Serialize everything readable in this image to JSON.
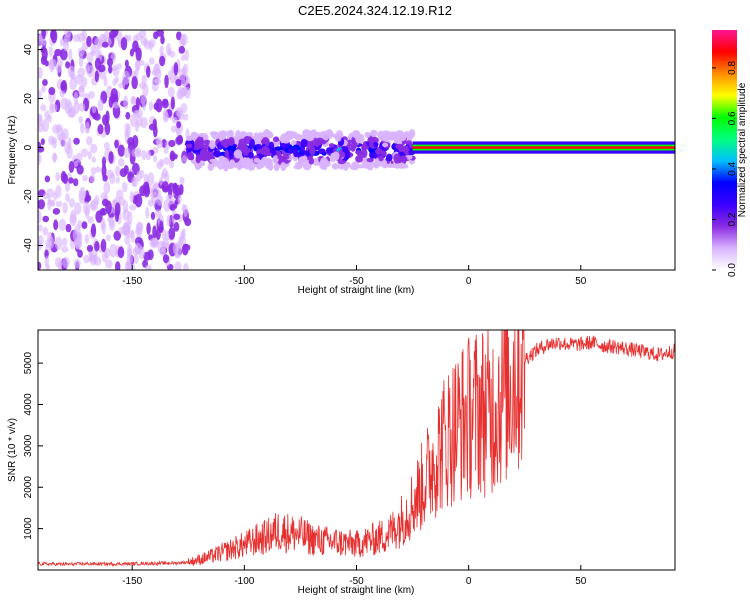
{
  "title": "C2E5.2024.324.12.19.R12",
  "colors": {
    "snr_line": "#e63030",
    "colormap": [
      "#ffffff",
      "#d9b3ff",
      "#8a2be2",
      "#3b00ff",
      "#0000ff",
      "#00bfff",
      "#00ff7f",
      "#00ff00",
      "#ffff00",
      "#ff8c00",
      "#ff0000",
      "#ff1493"
    ]
  },
  "chart_data": [
    {
      "type": "heatmap",
      "name": "spectrogram",
      "xlabel": "Height of straight line (km)",
      "ylabel": "Frequency (Hz)",
      "xlim": [
        -192,
        92
      ],
      "ylim": [
        -50,
        48
      ],
      "xticks": [
        -150,
        -100,
        -50,
        0,
        50
      ],
      "yticks": [
        -40,
        -20,
        0,
        20,
        40
      ],
      "colorbar": {
        "label": "Normalized spectral amplitude",
        "range": [
          0,
          0.95
        ],
        "ticks": [
          "0.0",
          "0.2",
          "0.4",
          "0.6",
          "0.8"
        ],
        "tick_values": [
          0,
          0.2,
          0.4,
          0.6,
          0.8
        ]
      },
      "regions": [
        {
          "name": "noise",
          "x_range": [
            -192,
            -125
          ],
          "freq_range": [
            -50,
            48
          ],
          "amplitude": 0.05
        },
        {
          "name": "signal-band-noisy",
          "x_range": [
            -125,
            -25
          ],
          "freq_range": [
            -8,
            6
          ],
          "amplitude": 0.25
        },
        {
          "name": "signal-band-clean",
          "x_range": [
            -25,
            92
          ],
          "freq_range": [
            -2,
            2
          ],
          "amplitude": 0.9
        }
      ]
    },
    {
      "type": "line",
      "name": "snr",
      "xlabel": "Height of straight line (km)",
      "ylabel": "SNR (10 * v/v)",
      "xlim": [
        -192,
        92
      ],
      "ylim": [
        0,
        5800
      ],
      "xticks": [
        -150,
        -100,
        -50,
        0,
        50
      ],
      "yticks": [
        1000,
        2000,
        3000,
        4000,
        5000
      ],
      "series": [
        {
          "name": "SNR",
          "x": [
            -192,
            -180,
            -170,
            -160,
            -150,
            -140,
            -130,
            -125,
            -120,
            -115,
            -110,
            -105,
            -100,
            -95,
            -90,
            -85,
            -80,
            -75,
            -70,
            -65,
            -60,
            -55,
            -50,
            -45,
            -40,
            -35,
            -30,
            -25,
            -20,
            -15,
            -10,
            -5,
            0,
            5,
            10,
            15,
            20,
            25,
            30,
            35,
            40,
            45,
            50,
            55,
            60,
            65,
            70,
            75,
            80,
            85,
            92
          ],
          "y": [
            150,
            140,
            150,
            145,
            150,
            160,
            170,
            190,
            250,
            330,
            420,
            520,
            600,
            720,
            800,
            950,
            900,
            850,
            750,
            700,
            680,
            650,
            620,
            700,
            780,
            900,
            1200,
            1600,
            2100,
            2700,
            3200,
            3500,
            3700,
            3900,
            3800,
            4300,
            4700,
            5100,
            5300,
            5450,
            5500,
            5450,
            5450,
            5500,
            5420,
            5400,
            5350,
            5300,
            5250,
            5200,
            5300
          ]
        }
      ]
    }
  ]
}
